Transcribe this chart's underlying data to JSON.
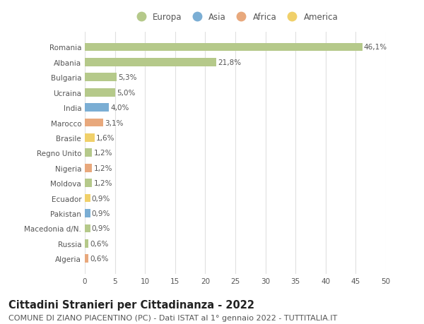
{
  "categories": [
    "Algeria",
    "Russia",
    "Macedonia d/N.",
    "Pakistan",
    "Ecuador",
    "Moldova",
    "Nigeria",
    "Regno Unito",
    "Brasile",
    "Marocco",
    "India",
    "Ucraina",
    "Bulgaria",
    "Albania",
    "Romania"
  ],
  "values": [
    0.6,
    0.6,
    0.9,
    0.9,
    0.9,
    1.2,
    1.2,
    1.2,
    1.6,
    3.1,
    4.0,
    5.0,
    5.3,
    21.8,
    46.1
  ],
  "labels": [
    "0,6%",
    "0,6%",
    "0,9%",
    "0,9%",
    "0,9%",
    "1,2%",
    "1,2%",
    "1,2%",
    "1,6%",
    "3,1%",
    "4,0%",
    "5,0%",
    "5,3%",
    "21,8%",
    "46,1%"
  ],
  "colors": [
    "#e8a87c",
    "#b5c98a",
    "#b5c98a",
    "#7baed4",
    "#f0d06a",
    "#b5c98a",
    "#e8a87c",
    "#b5c98a",
    "#f0d06a",
    "#e8a87c",
    "#7baed4",
    "#b5c98a",
    "#b5c98a",
    "#b5c98a",
    "#b5c98a"
  ],
  "legend_labels": [
    "Europa",
    "Asia",
    "Africa",
    "America"
  ],
  "legend_colors": [
    "#b5c98a",
    "#7baed4",
    "#e8a87c",
    "#f0d06a"
  ],
  "title": "Cittadini Stranieri per Cittadinanza - 2022",
  "subtitle": "COMUNE DI ZIANO PIACENTINO (PC) - Dati ISTAT al 1° gennaio 2022 - TUTTITALIA.IT",
  "xlim": [
    0,
    50
  ],
  "xticks": [
    0,
    5,
    10,
    15,
    20,
    25,
    30,
    35,
    40,
    45,
    50
  ],
  "background_color": "#ffffff",
  "grid_color": "#e0e0e0",
  "bar_height": 0.55,
  "title_fontsize": 10.5,
  "subtitle_fontsize": 8,
  "label_fontsize": 7.5,
  "tick_fontsize": 7.5,
  "legend_fontsize": 8.5
}
